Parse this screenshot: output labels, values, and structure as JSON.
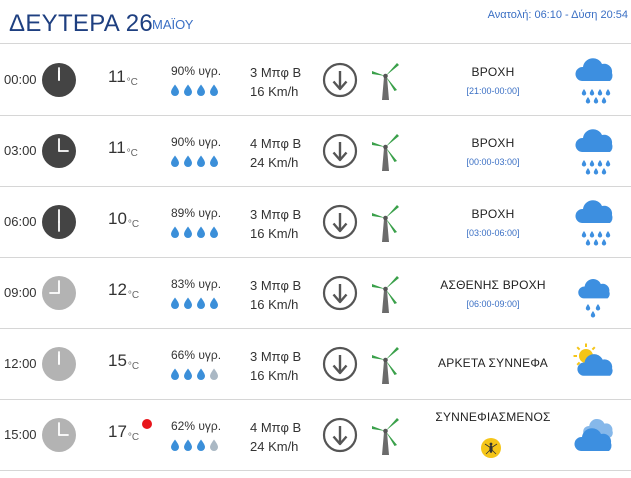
{
  "header": {
    "day_title": "ΔΕΥΤΕΡΑ 26",
    "month": "ΜΑΪΟΥ",
    "sun_times": "Ανατολή: 06:10 - Δύση 20:54"
  },
  "rows": [
    {
      "time": "00:00",
      "temp": "11",
      "unit": "°C",
      "humidity": "90% υγρ.",
      "wind_beaufort": "3 Μπφ Β",
      "wind_speed": "16 Km/h",
      "condition": "ΒΡΟΧΗ",
      "range": "[21:00-00:00]",
      "clock": "night",
      "weather_icon": "cloud-heavy-rain-icon",
      "drops_full": 4
    },
    {
      "time": "03:00",
      "temp": "11",
      "unit": "°C",
      "humidity": "90% υγρ.",
      "wind_beaufort": "4 Μπφ Β",
      "wind_speed": "24 Km/h",
      "condition": "ΒΡΟΧΗ",
      "range": "[00:00-03:00]",
      "clock": "night",
      "weather_icon": "cloud-heavy-rain-icon",
      "drops_full": 4
    },
    {
      "time": "06:00",
      "temp": "10",
      "unit": "°C",
      "humidity": "89% υγρ.",
      "wind_beaufort": "3 Μπφ Β",
      "wind_speed": "16 Km/h",
      "condition": "ΒΡΟΧΗ",
      "range": "[03:00-06:00]",
      "clock": "night",
      "weather_icon": "cloud-heavy-rain-icon",
      "drops_full": 4
    },
    {
      "time": "09:00",
      "temp": "12",
      "unit": "°C",
      "humidity": "83% υγρ.",
      "wind_beaufort": "3 Μπφ Β",
      "wind_speed": "16 Km/h",
      "condition": "ΑΣΘΕΝΗΣ ΒΡΟΧΗ",
      "range": "[06:00-09:00]",
      "clock": "day",
      "weather_icon": "cloud-light-rain-icon",
      "drops_full": 4
    },
    {
      "time": "12:00",
      "temp": "15",
      "unit": "°C",
      "humidity": "66% υγρ.",
      "wind_beaufort": "3 Μπφ Β",
      "wind_speed": "16 Km/h",
      "condition": "ΑΡΚΕΤΑ ΣΥΝΝΕΦΑ",
      "range": "",
      "clock": "day",
      "weather_icon": "sun-behind-cloud-icon",
      "drops_full": 3
    },
    {
      "time": "15:00",
      "temp": "17",
      "unit": "°C",
      "humidity": "62% υγρ.",
      "wind_beaufort": "4 Μπφ Β",
      "wind_speed": "24 Km/h",
      "condition": "ΣΥΝΝΕΦΙΑΣΜΕΝΟΣ",
      "range": "",
      "clock": "day",
      "weather_icon": "clouds-icon",
      "drops_full": 3,
      "hot_marker": true,
      "mosquito": true
    }
  ],
  "colors": {
    "title": "#1e3f80",
    "accent": "#3a6fc4",
    "clock_night": "#444444",
    "clock_day": "#b3b3b3",
    "drop_full": "#3b8fd9",
    "drop_empty": "#aab8c4",
    "cloud": "#3d8fe0",
    "sun": "#f5c518",
    "hot_marker": "#e8151b"
  }
}
